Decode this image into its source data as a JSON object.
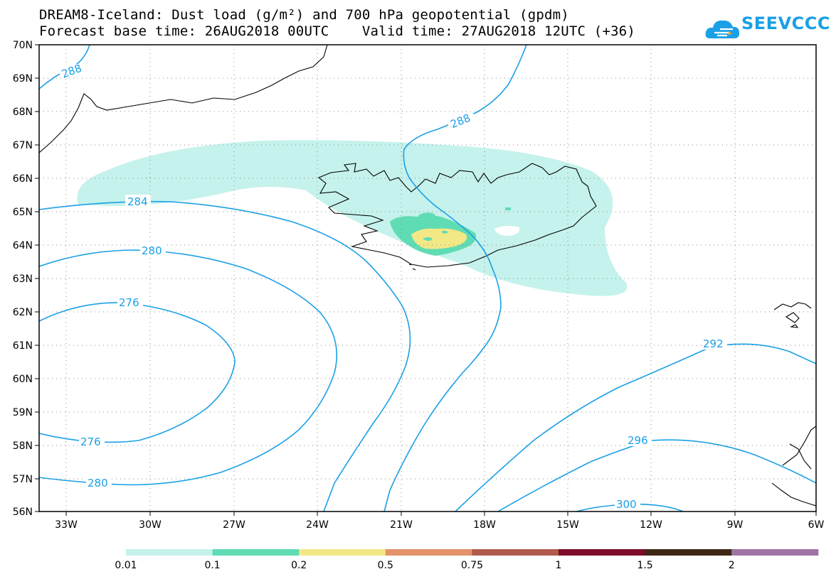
{
  "title": {
    "line1": "DREAM8-Iceland: Dust load (g/m²) and 700 hPa geopotential (gpdm)",
    "line2": "Forecast base time: 26AUG2018 00UTC    Valid time: 27AUG2018 12UTC (+36)"
  },
  "logo": {
    "text": "SEEVCCC",
    "icon": "cloud-icon",
    "color": "#1aa0e6"
  },
  "map": {
    "lon_labels": [
      "33W",
      "30W",
      "27W",
      "24W",
      "21W",
      "18W",
      "15W",
      "12W",
      "9W",
      "6W"
    ],
    "lat_labels": [
      "70N",
      "69N",
      "68N",
      "67N",
      "66N",
      "65N",
      "64N",
      "63N",
      "62N",
      "61N",
      "60N",
      "59N",
      "58N",
      "57N",
      "56N"
    ],
    "contour_color": "#1aa0e6",
    "contour_labels": [
      "288",
      "288",
      "284",
      "280",
      "276",
      "276",
      "280",
      "292",
      "296",
      "300"
    ]
  },
  "colorbar": {
    "colors": [
      "#c5f2ec",
      "#5fdcb4",
      "#f2e886",
      "#e39269",
      "#b15b4d",
      "#7e0b2a",
      "#3d2816",
      "#9e74a4"
    ],
    "labels": [
      "0.01",
      "0.1",
      "0.2",
      "0.5",
      "0.75",
      "1",
      "1.5",
      "2"
    ]
  }
}
